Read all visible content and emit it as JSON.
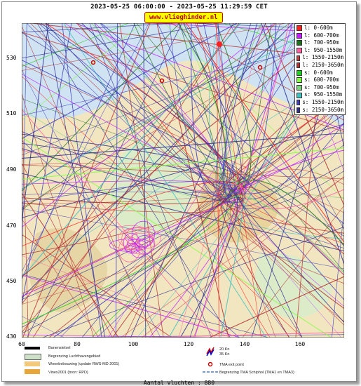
{
  "header": {
    "title": "2023-05-25 06:00:00 - 2023-05-25 11:29:59 CET",
    "site": "www.vlieghinder.nl"
  },
  "axes": {
    "y_ticks": [
      "530",
      "510",
      "490",
      "470",
      "450",
      "430"
    ],
    "x_ticks": [
      "60",
      "80",
      "100",
      "120",
      "140",
      "160"
    ]
  },
  "legend": [
    {
      "label": "l: 0-600m",
      "color": "#ff2020"
    },
    {
      "label": "l: 600-700m",
      "color": "#c020ff"
    },
    {
      "label": "l: 700-950m",
      "color": "#207020"
    },
    {
      "label": "l: 950-1550m",
      "color": "#ff60a0"
    },
    {
      "label": "l: 1550-2150m",
      "color": "#c04040"
    },
    {
      "label": "l: 2150-3650m",
      "color": "#b03030"
    },
    {
      "label": "s: 0-600m",
      "color": "#20d020"
    },
    {
      "label": "s: 600-700m",
      "color": "#80ff40"
    },
    {
      "label": "s: 700-950m",
      "color": "#80d080"
    },
    {
      "label": "s: 950-1550m",
      "color": "#40c0c0"
    },
    {
      "label": "s: 1550-2150m",
      "color": "#4040c0"
    },
    {
      "label": "s: 2150-3650m",
      "color": "#303090"
    }
  ],
  "key": {
    "items": [
      "Banenstelsel",
      "Begrenzing Luchthavengebied",
      "Woonbebouwing (update RWS-MD 2001)",
      "Vinex2001 (bron: RPD)"
    ],
    "wind": [
      "20 Kn",
      "35 Kn"
    ],
    "tma_exit": "TMA exit point",
    "tma_boundary": "Begrenzing TMA Schiphol  (TMA1 en TMA3)"
  },
  "footer": {
    "count": "Aantal vluchten : 880"
  }
}
